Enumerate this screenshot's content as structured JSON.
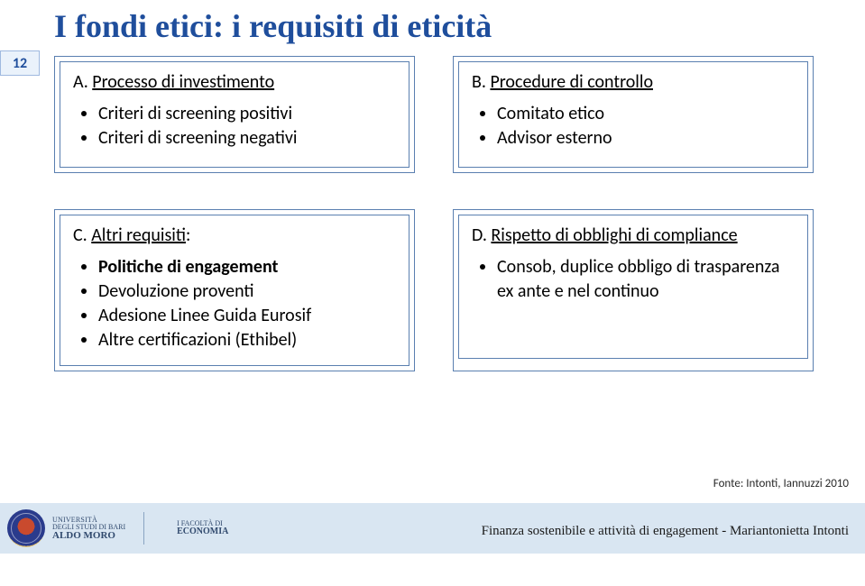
{
  "page_number": "12",
  "title": "I fondi etici: i requisiti di eticità",
  "box_a": {
    "heading_prefix": "A. ",
    "heading_underline": "Processo di investimento",
    "items": [
      "Criteri di screening positivi",
      "Criteri di screening negativi"
    ]
  },
  "box_b": {
    "heading_prefix": "B. ",
    "heading_underline": "Procedure di controllo",
    "items": [
      "Comitato etico",
      "Advisor esterno"
    ]
  },
  "box_c": {
    "heading_prefix": "C. ",
    "heading_underline": "Altri requisiti",
    "heading_suffix": ":",
    "items": [
      {
        "text": "Politiche di engagement",
        "bold": true
      },
      {
        "text": "Devoluzione proventi",
        "bold": false
      },
      {
        "text": "Adesione Linee Guida Eurosif",
        "bold": false
      },
      {
        "text": "Altre certificazioni (Ethibel)",
        "bold": false
      }
    ]
  },
  "box_d": {
    "heading_prefix": "D. ",
    "heading_underline": "Rispetto di obblighi di compliance",
    "items": [
      "Consob, duplice obbligo di trasparenza ex ante e nel continuo"
    ]
  },
  "source": "Fonte: Intonti, Iannuzzi 2010",
  "footer_text": "Finanza sostenibile e attività di engagement - Mariantonietta Intonti",
  "university": {
    "line1": "UNIVERSITÀ",
    "line2": "DEGLI STUDI DI BARI",
    "line3": "ALDO MORO",
    "fac1": "I FACOLTÀ DI",
    "fac2": "ECONOMIA"
  },
  "colors": {
    "title": "#1f4e9c",
    "box_border": "#5a7fb0",
    "page_bg": "#eaf2fb",
    "footer_bg": "#d9e6f2"
  }
}
